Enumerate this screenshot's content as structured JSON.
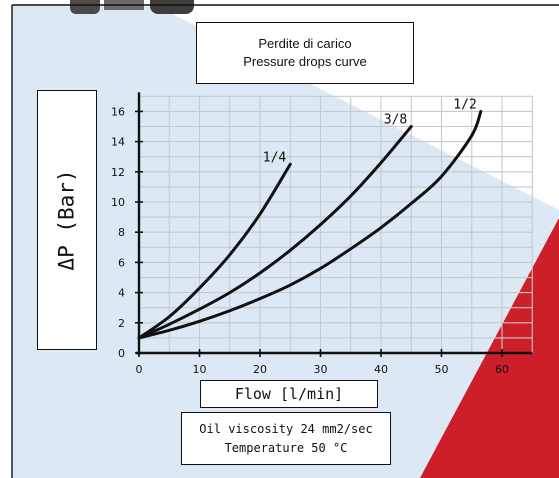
{
  "colors": {
    "background_wedge": "#dce9f5",
    "accent_red": "#cc1f2a",
    "grid": "#c7c9cc",
    "curve": "#111111"
  },
  "title_box": {
    "line1": "Perdite di carico",
    "line2": "Pressure drops curve"
  },
  "note_box": {
    "line1": "Oil viscosity 24 mm2/sec",
    "line2": "Temperature 50 °C"
  },
  "chart_data": {
    "type": "line",
    "xlabel": "Flow [l/min]",
    "ylabel": "ΔP (Bar)",
    "xlim": [
      0,
      65
    ],
    "ylim": [
      0,
      17
    ],
    "x_ticks": [
      0,
      10,
      20,
      30,
      40,
      50,
      60
    ],
    "y_ticks": [
      0,
      2,
      4,
      6,
      8,
      10,
      12,
      14,
      16
    ],
    "grid": true,
    "series": [
      {
        "name": "1/4",
        "x": [
          0,
          5,
          10,
          15,
          20,
          25
        ],
        "y": [
          1,
          2.4,
          4.3,
          6.5,
          9.2,
          12.5
        ]
      },
      {
        "name": "3/8",
        "x": [
          0,
          5,
          10,
          15,
          20,
          25,
          30,
          35,
          40,
          45
        ],
        "y": [
          1,
          1.9,
          2.9,
          4.0,
          5.3,
          6.8,
          8.5,
          10.4,
          12.6,
          15.0
        ]
      },
      {
        "name": "1/2",
        "x": [
          0,
          5,
          10,
          15,
          20,
          25,
          30,
          35,
          40,
          45,
          50,
          55,
          56.5
        ],
        "y": [
          1,
          1.5,
          2.1,
          2.8,
          3.6,
          4.5,
          5.6,
          6.9,
          8.3,
          9.9,
          11.7,
          14.4,
          16.0
        ]
      }
    ]
  }
}
